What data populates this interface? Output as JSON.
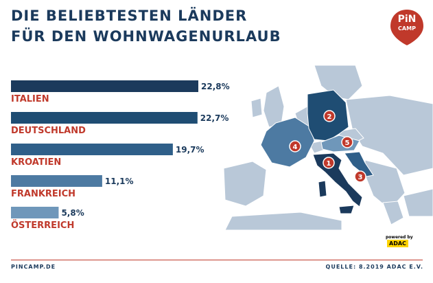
{
  "title": {
    "line1": "DIE BELIEBTESTEN LÄNDER",
    "line2": "FÜR DEN WOHNWAGENURLAUB"
  },
  "logo": {
    "line1": "PiN",
    "line2": "CAMP"
  },
  "chart_data": {
    "type": "bar",
    "orientation": "horizontal",
    "categories": [
      "ITALIEN",
      "DEUTSCHLAND",
      "KROATIEN",
      "FRANKREICH",
      "ÖSTERREICH"
    ],
    "values": [
      22.8,
      22.7,
      19.7,
      11.1,
      5.8
    ],
    "value_labels": [
      "22,8%",
      "22,7%",
      "19,7%",
      "11,1%",
      "5,8%"
    ],
    "xlim": [
      0,
      22.8
    ],
    "bar_colors": [
      "#1b3a5c",
      "#1f4d73",
      "#2f5f89",
      "#4d7aa2",
      "#6f97ba"
    ],
    "label_color": "#c0392b",
    "value_color": "#1b3a5c"
  },
  "map": {
    "markers": [
      "1",
      "2",
      "3",
      "4",
      "5"
    ],
    "marker_color": "#c0392b",
    "highlight_colors": {
      "italien": "#1b3a5c",
      "deutschland": "#1f4d73",
      "kroatien": "#2f5f89",
      "frankreich": "#4d7aa2",
      "oesterreich": "#6f97ba"
    },
    "base_color": "#b9c8d8"
  },
  "badge": {
    "powered": "powered by",
    "brand": "ADAC"
  },
  "footer": {
    "left": "PINCAMP.DE",
    "right": "QUELLE: 8.2019 ADAC E.V."
  }
}
